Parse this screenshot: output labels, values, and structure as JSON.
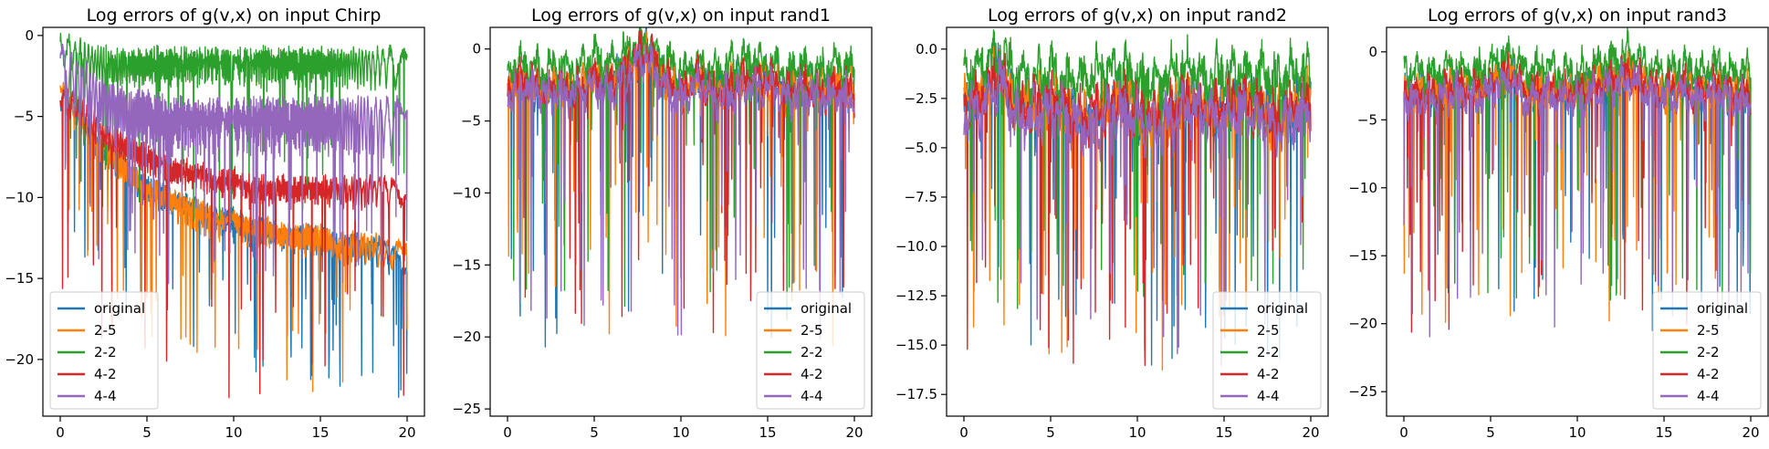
{
  "colors": {
    "original": "#1f77b4",
    "2-5": "#ff7f0e",
    "2-2": "#2ca02c",
    "4-2": "#d62728",
    "4-4": "#9467bd"
  },
  "chart_data": [
    {
      "type": "line",
      "title": "Log errors of g(v,x) on input Chirp",
      "xlim": [
        -1,
        21
      ],
      "ylim": [
        -23.5,
        0.5
      ],
      "xticks": [
        0,
        5,
        10,
        15,
        20
      ],
      "yticks": [
        0,
        -5,
        -10,
        -15,
        -20
      ],
      "ytick_labels": [
        "0",
        "−5",
        "−10",
        "−15",
        "−20"
      ],
      "legend_position": "lower-left",
      "series": [
        {
          "name": "original",
          "x": [
            0,
            1,
            2,
            3,
            4,
            5,
            6,
            7,
            8,
            9,
            10,
            11,
            12,
            13,
            14,
            15,
            16,
            17,
            18,
            19,
            20
          ],
          "y": [
            -4,
            -5.5,
            -7,
            -8,
            -9,
            -10,
            -10.5,
            -11,
            -11.5,
            -12,
            -12,
            -12.5,
            -12.5,
            -13,
            -13,
            -13,
            -13.5,
            -13.5,
            -13.5,
            -14,
            -14
          ]
        },
        {
          "name": "2-5",
          "x": [
            0,
            1,
            2,
            3,
            4,
            5,
            6,
            7,
            8,
            9,
            10,
            11,
            12,
            13,
            14,
            15,
            16,
            17,
            18,
            19,
            20
          ],
          "y": [
            -4,
            -5.5,
            -7,
            -8,
            -9,
            -10,
            -10.5,
            -11,
            -11.5,
            -12,
            -12,
            -12.5,
            -12.5,
            -13,
            -13,
            -13,
            -13.5,
            -13.5,
            -13.5,
            -14,
            -14
          ]
        },
        {
          "name": "2-2",
          "x": [
            0,
            1,
            2,
            3,
            4,
            5,
            6,
            7,
            8,
            9,
            10,
            11,
            12,
            13,
            14,
            15,
            16,
            17,
            18,
            19,
            20
          ],
          "y": [
            -1.5,
            -2,
            -2.5,
            -2.5,
            -2.5,
            -2.5,
            -2.5,
            -2.5,
            -2.5,
            -2.5,
            -2.5,
            -2.5,
            -2.5,
            -2.5,
            -2.5,
            -2.5,
            -2.5,
            -2.5,
            -2.5,
            -2.5,
            -2.5
          ]
        },
        {
          "name": "4-2",
          "x": [
            0,
            1,
            2,
            3,
            4,
            5,
            6,
            7,
            8,
            9,
            10,
            11,
            12,
            13,
            14,
            15,
            16,
            17,
            18,
            19,
            20
          ],
          "y": [
            -4,
            -5,
            -6,
            -7,
            -7.5,
            -8,
            -8.5,
            -9,
            -9,
            -9.5,
            -9.5,
            -10,
            -10,
            -10,
            -10,
            -10,
            -10,
            -10,
            -10,
            -10,
            -10
          ]
        },
        {
          "name": "4-4",
          "x": [
            0,
            1,
            2,
            3,
            4,
            5,
            6,
            7,
            8,
            9,
            10,
            11,
            12,
            13,
            14,
            15,
            16,
            17,
            18,
            19,
            20
          ],
          "y": [
            -3,
            -4,
            -5,
            -5.5,
            -6,
            -6,
            -6.5,
            -6.5,
            -6.5,
            -6.5,
            -6.5,
            -6.5,
            -6.5,
            -6.5,
            -6.5,
            -6.5,
            -6.5,
            -6.5,
            -6.5,
            -6.5,
            -6.5
          ]
        }
      ]
    },
    {
      "type": "line",
      "title": "Log errors of g(v,x) on input rand1",
      "xlim": [
        -1,
        21
      ],
      "ylim": [
        -25.5,
        1.5
      ],
      "xticks": [
        0,
        5,
        10,
        15,
        20
      ],
      "yticks": [
        0,
        -5,
        -10,
        -15,
        -20,
        -25
      ],
      "ytick_labels": [
        "0",
        "−5",
        "−10",
        "−15",
        "−20",
        "−25"
      ],
      "legend_position": "lower-right",
      "series": [
        {
          "name": "original",
          "x": [
            0,
            1,
            2,
            3,
            4,
            5,
            6,
            7,
            8,
            9,
            10,
            11,
            12,
            13,
            14,
            15,
            16,
            17,
            18,
            19,
            20
          ],
          "y": [
            -3,
            -2,
            -3,
            -2.5,
            -3,
            -2,
            -2.5,
            -1,
            0,
            -2,
            -3,
            -2,
            -3,
            -2.5,
            -2,
            -2,
            -3,
            -2.5,
            -3,
            -2.5,
            -3
          ]
        },
        {
          "name": "2-5",
          "x": [
            0,
            1,
            2,
            3,
            4,
            5,
            6,
            7,
            8,
            9,
            10,
            11,
            12,
            13,
            14,
            15,
            16,
            17,
            18,
            19,
            20
          ],
          "y": [
            -3,
            -2,
            -3,
            -2.5,
            -3,
            -2,
            -2.5,
            -1,
            0,
            -2,
            -3,
            -2,
            -3,
            -2.5,
            -2,
            -2,
            -3,
            -2.5,
            -3,
            -2.5,
            -3
          ]
        },
        {
          "name": "2-2",
          "x": [
            0,
            1,
            2,
            3,
            4,
            5,
            6,
            7,
            8,
            9,
            10,
            11,
            12,
            13,
            14,
            15,
            16,
            17,
            18,
            19,
            20
          ],
          "y": [
            -1.5,
            -1,
            -1.5,
            -1,
            -1.5,
            -0.5,
            -1,
            0,
            0.5,
            -0.5,
            -1.5,
            -1,
            -1.5,
            -1,
            -0.5,
            -1,
            -1.5,
            -1,
            -1.5,
            -1,
            -1.5
          ]
        },
        {
          "name": "4-2",
          "x": [
            0,
            1,
            2,
            3,
            4,
            5,
            6,
            7,
            8,
            9,
            10,
            11,
            12,
            13,
            14,
            15,
            16,
            17,
            18,
            19,
            20
          ],
          "y": [
            -3,
            -2,
            -3,
            -2.5,
            -3,
            -2,
            -2.5,
            -1,
            0,
            -2,
            -3,
            -2,
            -3,
            -2.5,
            -2,
            -2,
            -3,
            -2.5,
            -3,
            -2.5,
            -3
          ]
        },
        {
          "name": "4-4",
          "x": [
            0,
            1,
            2,
            3,
            4,
            5,
            6,
            7,
            8,
            9,
            10,
            11,
            12,
            13,
            14,
            15,
            16,
            17,
            18,
            19,
            20
          ],
          "y": [
            -3,
            -2.5,
            -3,
            -3,
            -3,
            -2.5,
            -3,
            -1.5,
            -0.5,
            -2.5,
            -3.5,
            -2.5,
            -3.5,
            -3,
            -2.5,
            -2.5,
            -3.5,
            -3,
            -3.5,
            -3,
            -3.5
          ]
        }
      ]
    },
    {
      "type": "line",
      "title": "Log errors of g(v,x) on input rand2",
      "xlim": [
        -1,
        21
      ],
      "ylim": [
        -18.6,
        1.1
      ],
      "xticks": [
        0,
        5,
        10,
        15,
        20
      ],
      "yticks": [
        0,
        -2.5,
        -5,
        -7.5,
        -10,
        -12.5,
        -15,
        -17.5
      ],
      "ytick_labels": [
        "0.0",
        "−2.5",
        "−5.0",
        "−7.5",
        "−10.0",
        "−12.5",
        "−15.0",
        "−17.5"
      ],
      "legend_position": "lower-right",
      "series": [
        {
          "name": "original",
          "x": [
            0,
            1,
            2,
            3,
            4,
            5,
            6,
            7,
            8,
            9,
            10,
            11,
            12,
            13,
            14,
            15,
            16,
            17,
            18,
            19,
            20
          ],
          "y": [
            -3,
            -2.5,
            -1,
            -3,
            -3,
            -2.5,
            -3,
            -3.5,
            -3,
            -2.5,
            -3,
            -3.5,
            -3,
            -2.5,
            -3,
            -3,
            -2.5,
            -3,
            -3.5,
            -3,
            -2.5
          ]
        },
        {
          "name": "2-5",
          "x": [
            0,
            1,
            2,
            3,
            4,
            5,
            6,
            7,
            8,
            9,
            10,
            11,
            12,
            13,
            14,
            15,
            16,
            17,
            18,
            19,
            20
          ],
          "y": [
            -3,
            -2.5,
            -1,
            -3,
            -3,
            -2.5,
            -3,
            -3.5,
            -3,
            -2.5,
            -3,
            -3.5,
            -3,
            -2.5,
            -3,
            -3,
            -2.5,
            -3,
            -3.5,
            -3,
            -2.5
          ]
        },
        {
          "name": "2-2",
          "x": [
            0,
            1,
            2,
            3,
            4,
            5,
            6,
            7,
            8,
            9,
            10,
            11,
            12,
            13,
            14,
            15,
            16,
            17,
            18,
            19,
            20
          ],
          "y": [
            -1.2,
            -1,
            0,
            -1.2,
            -1.5,
            -1,
            -1.5,
            -1.5,
            -1.2,
            -1,
            -1.5,
            -1.5,
            -1.2,
            -1,
            -1.5,
            -1.2,
            -1,
            -1.2,
            -1.5,
            -1.2,
            -1
          ]
        },
        {
          "name": "4-2",
          "x": [
            0,
            1,
            2,
            3,
            4,
            5,
            6,
            7,
            8,
            9,
            10,
            11,
            12,
            13,
            14,
            15,
            16,
            17,
            18,
            19,
            20
          ],
          "y": [
            -3,
            -2.5,
            -1,
            -3,
            -3,
            -2.5,
            -3,
            -3.5,
            -3,
            -2.5,
            -3,
            -3.5,
            -3,
            -2.5,
            -3,
            -3,
            -2.5,
            -3,
            -3.5,
            -3,
            -2.5
          ]
        },
        {
          "name": "4-4",
          "x": [
            0,
            1,
            2,
            3,
            4,
            5,
            6,
            7,
            8,
            9,
            10,
            11,
            12,
            13,
            14,
            15,
            16,
            17,
            18,
            19,
            20
          ],
          "y": [
            -3.5,
            -3,
            -1.5,
            -3.5,
            -3.5,
            -3,
            -3.5,
            -4,
            -3.5,
            -3,
            -3.5,
            -4,
            -3.5,
            -3,
            -3.5,
            -3.5,
            -3,
            -3.5,
            -4,
            -3.5,
            -3
          ]
        }
      ]
    },
    {
      "type": "line",
      "title": "Log errors of g(v,x) on input rand3",
      "xlim": [
        -1,
        21
      ],
      "ylim": [
        -26.8,
        1.8
      ],
      "xticks": [
        0,
        5,
        10,
        15,
        20
      ],
      "yticks": [
        0,
        -5,
        -10,
        -15,
        -20,
        -25
      ],
      "ytick_labels": [
        "0",
        "−5",
        "−10",
        "−15",
        "−20",
        "−25"
      ],
      "legend_position": "lower-right",
      "series": [
        {
          "name": "original",
          "x": [
            0,
            1,
            2,
            3,
            4,
            5,
            6,
            7,
            8,
            9,
            10,
            11,
            12,
            13,
            14,
            15,
            16,
            17,
            18,
            19,
            20
          ],
          "y": [
            -3,
            -3,
            -3,
            -2.5,
            -3,
            -2.5,
            -1.5,
            -3,
            -2.5,
            -3,
            -3,
            -2.5,
            -2,
            -1.5,
            -2.5,
            -3,
            -2.5,
            -3,
            -2.5,
            -3,
            -3
          ]
        },
        {
          "name": "2-5",
          "x": [
            0,
            1,
            2,
            3,
            4,
            5,
            6,
            7,
            8,
            9,
            10,
            11,
            12,
            13,
            14,
            15,
            16,
            17,
            18,
            19,
            20
          ],
          "y": [
            -3,
            -3,
            -3,
            -2.5,
            -3,
            -2.5,
            -1.5,
            -3,
            -2.5,
            -3,
            -3,
            -2.5,
            -2,
            -1.5,
            -2.5,
            -3,
            -2.5,
            -3,
            -2.5,
            -3,
            -3
          ]
        },
        {
          "name": "2-2",
          "x": [
            0,
            1,
            2,
            3,
            4,
            5,
            6,
            7,
            8,
            9,
            10,
            11,
            12,
            13,
            14,
            15,
            16,
            17,
            18,
            19,
            20
          ],
          "y": [
            -1.5,
            -1.5,
            -1.5,
            -1,
            -1.5,
            -1,
            0,
            -1.5,
            -1,
            -1.5,
            -1.5,
            -1,
            -0.5,
            0,
            -1,
            -1.5,
            -1,
            -1.5,
            -1,
            -1.5,
            -1.5
          ]
        },
        {
          "name": "4-2",
          "x": [
            0,
            1,
            2,
            3,
            4,
            5,
            6,
            7,
            8,
            9,
            10,
            11,
            12,
            13,
            14,
            15,
            16,
            17,
            18,
            19,
            20
          ],
          "y": [
            -3,
            -3,
            -3,
            -2.5,
            -3,
            -2.5,
            -1.5,
            -3,
            -2.5,
            -3,
            -3,
            -2.5,
            -2,
            -1.5,
            -2.5,
            -3,
            -2.5,
            -3,
            -2.5,
            -3,
            -3
          ]
        },
        {
          "name": "4-4",
          "x": [
            0,
            1,
            2,
            3,
            4,
            5,
            6,
            7,
            8,
            9,
            10,
            11,
            12,
            13,
            14,
            15,
            16,
            17,
            18,
            19,
            20
          ],
          "y": [
            -3.5,
            -3.5,
            -3.5,
            -3,
            -3.5,
            -3,
            -2,
            -3.5,
            -3,
            -3.5,
            -3.5,
            -3,
            -2.5,
            -2,
            -3,
            -3.5,
            -3,
            -3.5,
            -3,
            -3.5,
            -3.5
          ]
        }
      ]
    }
  ]
}
